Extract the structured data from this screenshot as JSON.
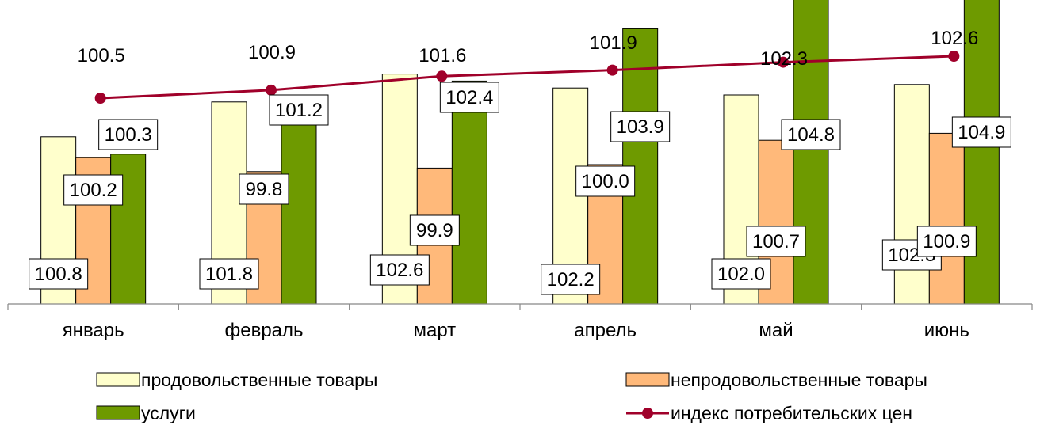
{
  "chart_data": {
    "type": "bar",
    "categories": [
      "январь",
      "февраль",
      "март",
      "апрель",
      "май",
      "июнь"
    ],
    "series": [
      {
        "name": "продовольственные товары",
        "type": "bar",
        "color": "#FFFFCC",
        "values": [
          100.8,
          101.8,
          102.6,
          102.2,
          102.0,
          102.3
        ]
      },
      {
        "name": "непродовольственные товары",
        "type": "bar",
        "color": "#FFB97A",
        "values": [
          100.2,
          99.8,
          99.9,
          100.0,
          100.7,
          100.9
        ]
      },
      {
        "name": "услуги",
        "type": "bar",
        "color": "#6E9A00",
        "values": [
          100.3,
          101.2,
          102.4,
          103.9,
          104.8,
          104.9
        ]
      },
      {
        "name": "индекс потребительских цен",
        "type": "line",
        "color": "#A0002A",
        "values": [
          100.5,
          100.9,
          101.6,
          101.9,
          102.3,
          102.6
        ]
      }
    ],
    "legend_position": "bottom",
    "grid": false
  }
}
